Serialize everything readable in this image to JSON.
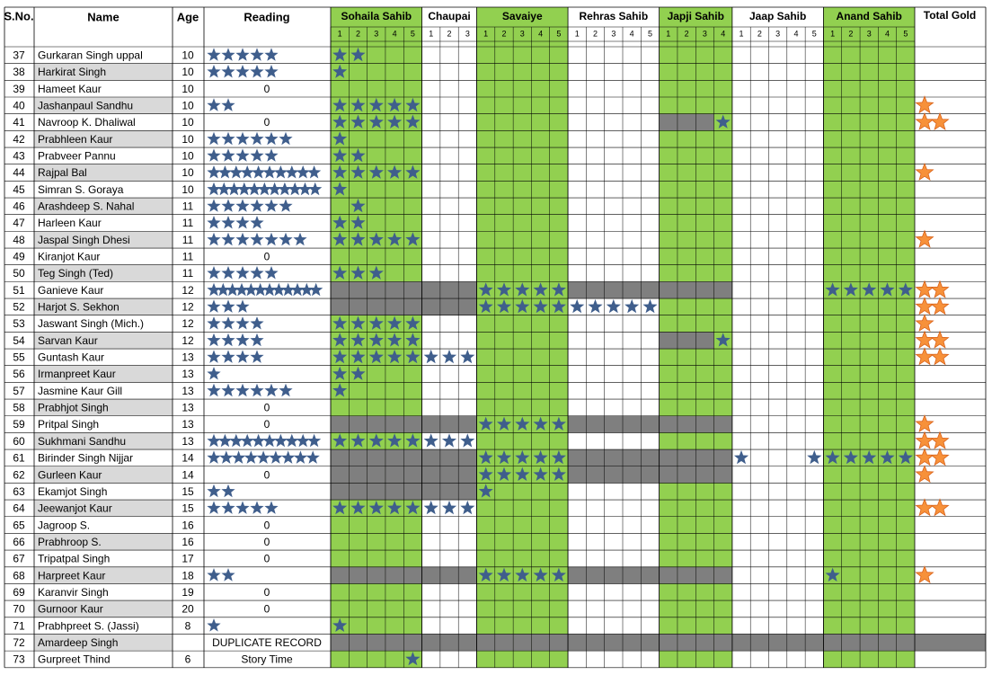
{
  "table": {
    "headers": {
      "sno": "S.No.",
      "name": "Name",
      "age": "Age",
      "reading": "Reading",
      "gold": "Total Gold"
    },
    "sections": [
      {
        "name": "Sohaila Sahib",
        "parts": [
          1,
          2,
          3,
          4,
          5
        ],
        "color": "#92d050"
      },
      {
        "name": "Chaupai",
        "parts": [
          1,
          2,
          3
        ]
      },
      {
        "name": "Savaiye",
        "parts": [
          1,
          2,
          3,
          4,
          5
        ],
        "color": "#92d050"
      },
      {
        "name": "Rehras Sahib",
        "parts": [
          1,
          2,
          3,
          4,
          5
        ]
      },
      {
        "name": "Japji Sahib",
        "parts": [
          1,
          2,
          3,
          4
        ],
        "color": "#92d050"
      },
      {
        "name": "Jaap Sahib",
        "parts": [
          1,
          2,
          3,
          4,
          5
        ]
      },
      {
        "name": "Anand Sahib",
        "parts": [
          1,
          2,
          3,
          4,
          5
        ],
        "color": "#92d050"
      }
    ],
    "rows": [
      {
        "sno": 37,
        "name": "Gurkaran Singh uppal",
        "age": 10,
        "reading": 5,
        "cells": [
          "**...",
          "...",
          ".....",
          ".....",
          "....",
          ".....",
          "....."
        ],
        "gold": 0
      },
      {
        "sno": 38,
        "name": "Harkirat Singh",
        "age": 10,
        "reading": 5,
        "cells": [
          "*....",
          "...",
          ".....",
          ".....",
          "....",
          ".....",
          "....."
        ],
        "gold": 0
      },
      {
        "sno": 39,
        "name": "Hameet Kaur",
        "age": 10,
        "reading": "0",
        "cells": [
          ".....",
          "...",
          ".....",
          ".....",
          "....",
          ".....",
          "....."
        ],
        "gold": 0
      },
      {
        "sno": 40,
        "name": "Jashanpaul Sandhu",
        "age": 10,
        "reading": 2,
        "cells": [
          "*****",
          "...",
          ".....",
          ".....",
          "....",
          ".....",
          "....."
        ],
        "gold": 1
      },
      {
        "sno": 41,
        "name": "Navroop K. Dhaliwal",
        "age": 10,
        "reading": "0",
        "cells": [
          "*****",
          "...",
          ".....",
          ".....",
          "###*",
          ".....",
          "....."
        ],
        "gold": 2
      },
      {
        "sno": 42,
        "name": "Prabhleen Kaur",
        "age": 10,
        "reading": 6,
        "cells": [
          "*....",
          "...",
          ".....",
          ".....",
          "....",
          ".....",
          "....."
        ],
        "gold": 0
      },
      {
        "sno": 43,
        "name": "Prabveer Pannu",
        "age": 10,
        "reading": 5,
        "cells": [
          "**...",
          "...",
          ".....",
          ".....",
          "....",
          ".....",
          "....."
        ],
        "gold": 0
      },
      {
        "sno": 44,
        "name": "Rajpal Bal",
        "age": 10,
        "reading": 10,
        "cells": [
          "*****",
          "...",
          ".....",
          ".....",
          "....",
          ".....",
          "....."
        ],
        "gold": 1
      },
      {
        "sno": 45,
        "name": "Simran S. Goraya",
        "age": 10,
        "reading": 11,
        "cells": [
          "*....",
          "...",
          ".....",
          ".....",
          "....",
          ".....",
          "....."
        ],
        "gold": 0
      },
      {
        "sno": 46,
        "name": "Arashdeep S. Nahal",
        "age": 11,
        "reading": 6,
        "cells": [
          ".*...",
          "...",
          ".....",
          ".....",
          "....",
          ".....",
          "....."
        ],
        "gold": 0
      },
      {
        "sno": 47,
        "name": "Harleen Kaur",
        "age": 11,
        "reading": 4,
        "cells": [
          "**...",
          "...",
          ".....",
          ".....",
          "....",
          ".....",
          "....."
        ],
        "gold": 0
      },
      {
        "sno": 48,
        "name": "Jaspal Singh Dhesi",
        "age": 11,
        "reading": 7,
        "cells": [
          "*****",
          "...",
          ".....",
          ".....",
          "....",
          ".....",
          "....."
        ],
        "gold": 1
      },
      {
        "sno": 49,
        "name": "Kiranjot Kaur",
        "age": 11,
        "reading": "0",
        "cells": [
          ".....",
          "...",
          ".....",
          ".....",
          "....",
          ".....",
          "....."
        ],
        "gold": 0
      },
      {
        "sno": 50,
        "name": "Teg Singh (Ted)",
        "age": 11,
        "reading": 5,
        "cells": [
          "***..",
          "...",
          ".....",
          ".....",
          "....",
          ".....",
          "....."
        ],
        "gold": 0
      },
      {
        "sno": 51,
        "name": "Ganieve Kaur",
        "age": 12,
        "reading": 12,
        "cells": [
          "#####",
          "###",
          "*****",
          "#####",
          "####",
          ".....",
          "*****"
        ],
        "gold": 2
      },
      {
        "sno": 52,
        "name": "Harjot S. Sekhon",
        "age": 12,
        "reading": 3,
        "cells": [
          "#####",
          "###",
          "*****",
          "*****",
          "....",
          ".....",
          "....."
        ],
        "gold": 2
      },
      {
        "sno": 53,
        "name": "Jaswant Singh (Mich.)",
        "age": 12,
        "reading": 4,
        "cells": [
          "*****",
          "...",
          ".....",
          ".....",
          "....",
          ".....",
          "....."
        ],
        "gold": 1
      },
      {
        "sno": 54,
        "name": "Sarvan Kaur",
        "age": 12,
        "reading": 4,
        "cells": [
          "*****",
          "...",
          ".....",
          ".....",
          "###*",
          ".....",
          "....."
        ],
        "gold": 2
      },
      {
        "sno": 55,
        "name": "Guntash Kaur",
        "age": 13,
        "reading": 4,
        "cells": [
          "*****",
          "***",
          ".....",
          ".....",
          "....",
          ".....",
          "....."
        ],
        "gold": 2
      },
      {
        "sno": 56,
        "name": "Irmanpreet Kaur",
        "age": 13,
        "reading": 1,
        "cells": [
          "**...",
          "...",
          ".....",
          ".....",
          "....",
          ".....",
          "....."
        ],
        "gold": 0
      },
      {
        "sno": 57,
        "name": "Jasmine Kaur Gill",
        "age": 13,
        "reading": 6,
        "cells": [
          "*....",
          "...",
          ".....",
          ".....",
          "....",
          ".....",
          "....."
        ],
        "gold": 0
      },
      {
        "sno": 58,
        "name": "Prabhjot Singh",
        "age": 13,
        "reading": "0",
        "cells": [
          ".....",
          "...",
          ".....",
          ".....",
          "....",
          ".....",
          "....."
        ],
        "gold": 0
      },
      {
        "sno": 59,
        "name": "Pritpal Singh",
        "age": 13,
        "reading": "0",
        "cells": [
          "#####",
          "###",
          "*****",
          "#####",
          "####",
          ".....",
          "....."
        ],
        "gold": 1
      },
      {
        "sno": 60,
        "name": "Sukhmani Sandhu",
        "age": 13,
        "reading": 10,
        "cells": [
          "*****",
          "***",
          ".....",
          ".....",
          "....",
          ".....",
          "....."
        ],
        "gold": 2
      },
      {
        "sno": 61,
        "name": "Birinder Singh Nijjar",
        "age": 14,
        "reading": 9,
        "cells": [
          "#####",
          "###",
          "*****",
          "#####",
          "####",
          "*...*",
          "*****"
        ],
        "gold": 2
      },
      {
        "sno": 62,
        "name": "Gurleen Kaur",
        "age": 14,
        "reading": "0",
        "cells": [
          "#####",
          "###",
          "*****",
          "#####",
          "####",
          ".....",
          "....."
        ],
        "gold": 1
      },
      {
        "sno": 63,
        "name": "Ekamjot Singh",
        "age": 15,
        "reading": 2,
        "cells": [
          "#####",
          "###",
          "*....",
          ".....",
          "....",
          ".....",
          "....."
        ],
        "gold": 0
      },
      {
        "sno": 64,
        "name": "Jeewanjot Kaur",
        "age": 15,
        "reading": 5,
        "cells": [
          "*****",
          "***",
          ".....",
          ".....",
          "....",
          ".....",
          "....."
        ],
        "gold": 2
      },
      {
        "sno": 65,
        "name": "Jagroop S.",
        "age": 16,
        "reading": "0",
        "cells": [
          ".....",
          "...",
          ".....",
          ".....",
          "....",
          ".....",
          "....."
        ],
        "gold": 0
      },
      {
        "sno": 66,
        "name": "Prabhroop S.",
        "age": 16,
        "reading": "0",
        "cells": [
          ".....",
          "...",
          ".....",
          ".....",
          "....",
          ".....",
          "....."
        ],
        "gold": 0
      },
      {
        "sno": 67,
        "name": "Tripatpal Singh",
        "age": 17,
        "reading": "0",
        "cells": [
          ".....",
          "...",
          ".....",
          ".....",
          "....",
          ".....",
          "....."
        ],
        "gold": 0
      },
      {
        "sno": 68,
        "name": "Harpreet Kaur",
        "age": 18,
        "reading": 2,
        "cells": [
          "#####",
          "###",
          "*****",
          "#####",
          "####",
          ".....",
          "*...."
        ],
        "gold": 1
      },
      {
        "sno": 69,
        "name": "Karanvir Singh",
        "age": 19,
        "reading": "0",
        "cells": [
          ".....",
          "...",
          ".....",
          ".....",
          "....",
          ".....",
          "....."
        ],
        "gold": 0
      },
      {
        "sno": 70,
        "name": "Gurnoor Kaur",
        "age": 20,
        "reading": "0",
        "cells": [
          ".....",
          "...",
          ".....",
          ".....",
          "....",
          ".....",
          "....."
        ],
        "gold": 0
      },
      {
        "sno": 71,
        "name": "Prabhpreet S. (Jassi)",
        "age": 8,
        "reading": 1,
        "cells": [
          "*....",
          "...",
          ".....",
          ".....",
          "....",
          ".....",
          "....."
        ],
        "gold": 0
      },
      {
        "sno": 72,
        "name": "Amardeep Singh",
        "age": null,
        "reading": "DUPLICATE RECORD",
        "cells": [
          "#####",
          "###",
          "#####",
          "#####",
          "####",
          "#####",
          "#####"
        ],
        "gold": 0
      },
      {
        "sno": 73,
        "name": "Gurpreet Thind",
        "age": 6,
        "reading": "Story Time",
        "reading_color": "#e00000",
        "cells": [
          "....*",
          "...",
          ".....",
          ".....",
          "....",
          ".....",
          "....."
        ],
        "gold": 0
      }
    ]
  }
}
